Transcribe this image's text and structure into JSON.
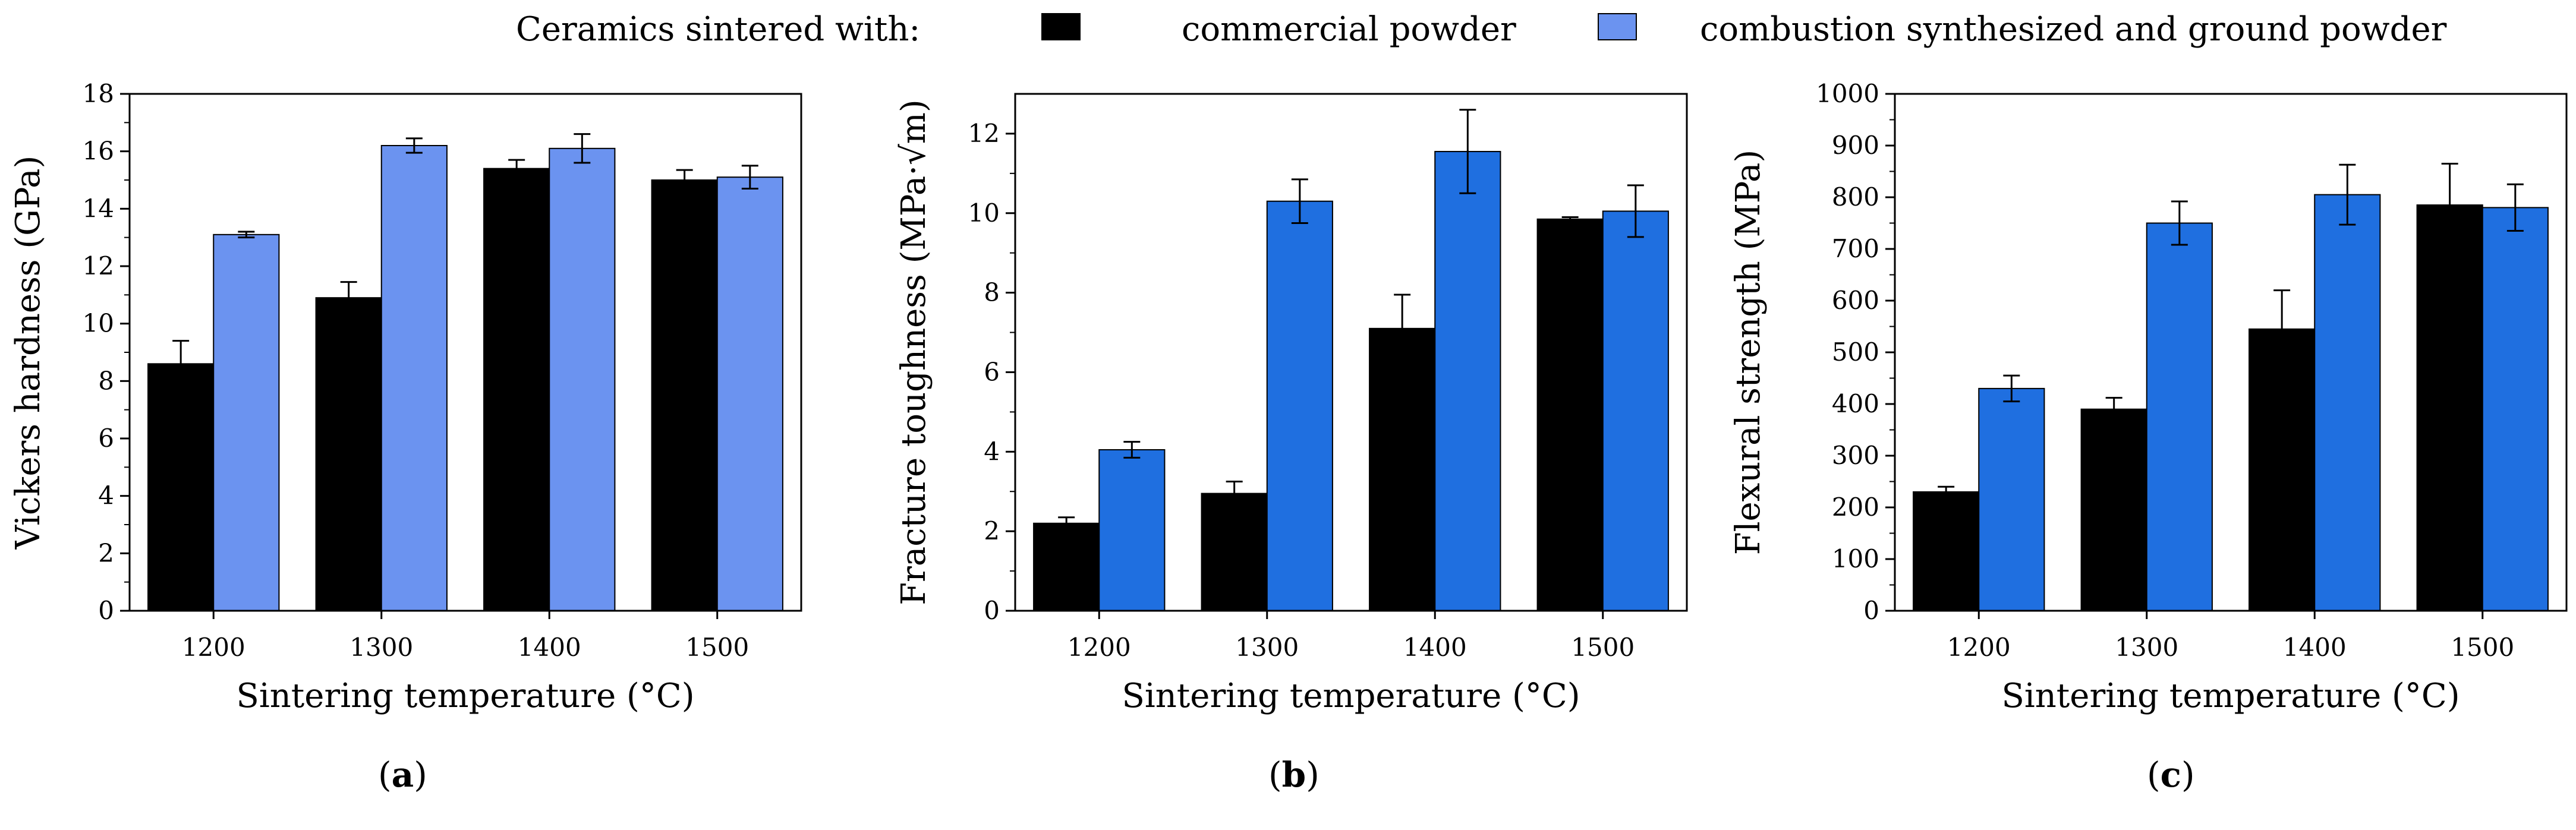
{
  "legend": {
    "prefix": "Ceramics sintered with:",
    "entries": [
      {
        "label": "commercial powder",
        "color": "#000000"
      },
      {
        "label": "combustion synthesized and ground powder",
        "color": "#6b93f0"
      }
    ]
  },
  "panels": [
    {
      "open": "(",
      "letter": "a",
      "close": ")"
    },
    {
      "open": "(",
      "letter": "b",
      "close": ")"
    },
    {
      "open": "(",
      "letter": "c",
      "close": ")"
    }
  ],
  "chart_data": [
    {
      "type": "bar",
      "categories": [
        "1200",
        "1300",
        "1400",
        "1500"
      ],
      "xlabel": "Sintering temperature (°C)",
      "ylabel": "Vickers hardness (GPa)",
      "ylim": [
        0,
        18
      ],
      "yticks": [
        0,
        2,
        4,
        6,
        8,
        10,
        12,
        14,
        16,
        18
      ],
      "grid": false,
      "series": [
        {
          "name": "commercial powder",
          "color": "#000000",
          "values": [
            8.6,
            10.9,
            15.4,
            15.0
          ],
          "errors": [
            0.8,
            0.55,
            0.3,
            0.35
          ]
        },
        {
          "name": "combustion synthesized and ground powder",
          "color": "#6b93f0",
          "values": [
            13.1,
            16.2,
            16.1,
            15.1
          ],
          "errors": [
            0.1,
            0.25,
            0.5,
            0.4
          ]
        }
      ]
    },
    {
      "type": "bar",
      "categories": [
        "1200",
        "1300",
        "1400",
        "1500"
      ],
      "xlabel": "Sintering temperature (°C)",
      "ylabel": "Fracture toughness (MPa·√m)",
      "ylim": [
        0,
        13
      ],
      "yticks": [
        0,
        2,
        4,
        6,
        8,
        10,
        12
      ],
      "grid": false,
      "series": [
        {
          "name": "commercial powder",
          "color": "#000000",
          "values": [
            2.2,
            2.95,
            7.1,
            9.85
          ],
          "errors": [
            0.15,
            0.3,
            0.85,
            0.05
          ]
        },
        {
          "name": "combustion synthesized and ground powder",
          "color": "#1f6fe0",
          "values": [
            4.05,
            10.3,
            11.55,
            10.05
          ],
          "errors": [
            0.2,
            0.55,
            1.05,
            0.65
          ]
        }
      ]
    },
    {
      "type": "bar",
      "categories": [
        "1200",
        "1300",
        "1400",
        "1500"
      ],
      "xlabel": "Sintering temperature (°C)",
      "ylabel": "Flexural strength (MPa)",
      "ylim": [
        0,
        1000
      ],
      "yticks": [
        0,
        100,
        200,
        300,
        400,
        500,
        600,
        700,
        800,
        900,
        1000
      ],
      "grid": false,
      "series": [
        {
          "name": "commercial powder",
          "color": "#000000",
          "values": [
            230,
            390,
            545,
            785
          ],
          "errors": [
            10,
            22,
            75,
            80
          ]
        },
        {
          "name": "combustion synthesized and ground powder",
          "color": "#1f6fe0",
          "values": [
            430,
            750,
            805,
            780
          ],
          "errors": [
            25,
            42,
            58,
            45
          ]
        }
      ]
    }
  ]
}
